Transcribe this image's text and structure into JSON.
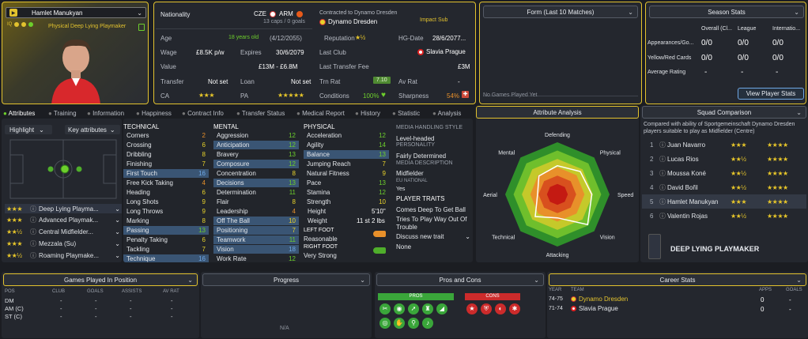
{
  "player": {
    "name": "Hamlet Manukyan",
    "role": "Physical Deep Lying Playmaker",
    "iq_label": "IQ",
    "number_badge": "▶"
  },
  "info": {
    "nationality_label": "Nationality",
    "nation1": "CZE",
    "nation2": "ARM",
    "caps": "13 caps / 0 goals",
    "contracted_label": "Contracted to Dynamo Dresden",
    "club": "Dynamo Dresden",
    "impact": "Impact Sub",
    "age_label": "Age",
    "age": "18 years old",
    "dob": "(4/12/2055)",
    "reputation_label": "Reputation",
    "hg_label": "HG-Date",
    "hg": "28/6/2077...",
    "wage_label": "Wage",
    "wage": "£8.5K p/w",
    "expires_label": "Expires",
    "expires": "30/6/2079",
    "last_club_label": "Last Club",
    "last_club": "Slavia Prague",
    "value_label": "Value",
    "value": "£13M - £6.8M",
    "last_fee_label": "Last Transfer Fee",
    "last_fee": "£3M",
    "transfer_label": "Transfer",
    "transfer": "Not set",
    "loan_label": "Loan",
    "loan": "Not set",
    "trn_label": "Trn Rat",
    "trn": "7.10",
    "av_label": "Av Rat",
    "av": "-",
    "ca_label": "CA",
    "pa_label": "PA",
    "cond_label": "Conditions",
    "cond": "100%",
    "sharp_label": "Sharpness",
    "sharp": "54%"
  },
  "form": {
    "title": "Form (Last 10 Matches)",
    "empty": "No Games Played Yet"
  },
  "season": {
    "title": "Season Stats",
    "cols": [
      "Overall (Cl...",
      "League",
      "Internatio..."
    ],
    "rows": [
      {
        "label": "Appearances/Go...",
        "v": [
          "0/0",
          "0/0",
          "0/0"
        ]
      },
      {
        "label": "Yellow/Red Cards",
        "v": [
          "0/0",
          "0/0",
          "0/0"
        ]
      },
      {
        "label": "Average Rating",
        "v": [
          "-",
          "-",
          "-"
        ]
      }
    ],
    "button": "View Player Stats"
  },
  "tabs": [
    "Attributes",
    "Training",
    "Information",
    "Happiness",
    "Contract Info",
    "Transfer Status",
    "Medical Report",
    "History",
    "Statistic",
    "Analysis"
  ],
  "left": {
    "highlight": "Highlight",
    "key_attrs": "Key attributes",
    "roles": [
      {
        "stars": "★★★",
        "name": "Deep Lying Playma..."
      },
      {
        "stars": "★★★",
        "name": "Advanced Playmak..."
      },
      {
        "stars": "★★½",
        "name": "Central Midfielder..."
      },
      {
        "stars": "★★★",
        "name": "Mezzala (Su)"
      },
      {
        "stars": "★★½",
        "name": "Roaming Playmake..."
      }
    ]
  },
  "technical": {
    "title": "TECHNICAL",
    "attrs": [
      {
        "n": "Corners",
        "v": "2"
      },
      {
        "n": "Crossing",
        "v": "6"
      },
      {
        "n": "Dribbling",
        "v": "8"
      },
      {
        "n": "Finishing",
        "v": "7"
      },
      {
        "n": "First Touch",
        "v": "16"
      },
      {
        "n": "Free Kick Taking",
        "v": "4"
      },
      {
        "n": "Heading",
        "v": "6"
      },
      {
        "n": "Long Shots",
        "v": "9"
      },
      {
        "n": "Long Throws",
        "v": "9"
      },
      {
        "n": "Marking",
        "v": "8"
      },
      {
        "n": "Passing",
        "v": "13"
      },
      {
        "n": "Penalty Taking",
        "v": "6"
      },
      {
        "n": "Tackling",
        "v": "7"
      },
      {
        "n": "Technique",
        "v": "16"
      }
    ]
  },
  "mental": {
    "title": "MENTAL",
    "attrs": [
      {
        "n": "Aggression",
        "v": "12"
      },
      {
        "n": "Anticipation",
        "v": "12"
      },
      {
        "n": "Bravery",
        "v": "13"
      },
      {
        "n": "Composure",
        "v": "12"
      },
      {
        "n": "Concentration",
        "v": "8"
      },
      {
        "n": "Decisions",
        "v": "13"
      },
      {
        "n": "Determination",
        "v": "11"
      },
      {
        "n": "Flair",
        "v": "8"
      },
      {
        "n": "Leadership",
        "v": "4"
      },
      {
        "n": "Off The Ball",
        "v": "10"
      },
      {
        "n": "Positioning",
        "v": "7"
      },
      {
        "n": "Teamwork",
        "v": "11"
      },
      {
        "n": "Vision",
        "v": "18"
      },
      {
        "n": "Work Rate",
        "v": "12"
      }
    ]
  },
  "physical": {
    "title": "PHYSICAL",
    "attrs": [
      {
        "n": "Acceleration",
        "v": "12"
      },
      {
        "n": "Agility",
        "v": "14"
      },
      {
        "n": "Balance",
        "v": "13"
      },
      {
        "n": "Jumping Reach",
        "v": "7"
      },
      {
        "n": "Natural Fitness",
        "v": "9"
      },
      {
        "n": "Pace",
        "v": "13"
      },
      {
        "n": "Stamina",
        "v": "12"
      },
      {
        "n": "Strength",
        "v": "10"
      }
    ],
    "height_label": "Height",
    "height": "5'10\"",
    "weight_label": "Weight",
    "weight": "11 st 2 lbs",
    "left_foot_label": "LEFT FOOT",
    "left_foot": "Reasonable",
    "right_foot_label": "RIGHT FOOT",
    "right_foot": "Very Strong"
  },
  "media": {
    "style_title": "MEDIA HANDLING STYLE",
    "style": "Level-headed",
    "pers_title": "PERSONALITY",
    "pers": "Fairly Determined",
    "desc_title": "MEDIA DESCRIPTION",
    "desc": "Midfielder",
    "eu_title": "EU NATIONAL",
    "eu": "Yes",
    "traits_title": "PLAYER TRAITS",
    "traits": [
      "Comes Deep To Get Ball",
      "Tries To Play Way Out Of Trouble"
    ],
    "discuss": "Discuss new trait",
    "none": "None"
  },
  "analysis": {
    "title": "Attribute Analysis",
    "axes": [
      "Defending",
      "Physical",
      "Speed",
      "Vision",
      "Attacking",
      "Technical",
      "Aerial",
      "Mental"
    ]
  },
  "squad": {
    "title": "Squad Comparison",
    "desc": "Compared with ability of Sportgemeinschaft Dynamo Dresden players suitable to play as Midfielder (Centre)",
    "rows": [
      {
        "rank": "1",
        "name": "Juan Navarro",
        "s1": "★★★",
        "s2": "★★★★"
      },
      {
        "rank": "2",
        "name": "Lucas Rios",
        "s1": "★★½",
        "s2": "★★★★"
      },
      {
        "rank": "3",
        "name": "Moussa Koné",
        "s1": "★★½",
        "s2": "★★★★"
      },
      {
        "rank": "4",
        "name": "David Bořil",
        "s1": "★★½",
        "s2": "★★★★"
      },
      {
        "rank": "5",
        "name": "Hamlet Manukyan",
        "s1": "★★★",
        "s2": "★★★★"
      },
      {
        "rank": "6",
        "name": "Valentin Rojas",
        "s1": "★★½",
        "s2": "★★★★"
      }
    ],
    "role": "DEEP LYING PLAYMAKER"
  },
  "games": {
    "title": "Games Played In Position",
    "cols": [
      "POS",
      "CLUB",
      "GOALS",
      "ASSISTS",
      "AV RAT"
    ],
    "rows": [
      {
        "pos": "DM",
        "v": [
          "-",
          "-",
          "-",
          "-"
        ]
      },
      {
        "pos": "AM (C)",
        "v": [
          "-",
          "-",
          "-",
          "-"
        ]
      },
      {
        "pos": "ST (C)",
        "v": [
          "-",
          "-",
          "-",
          "-"
        ]
      }
    ]
  },
  "progress": {
    "title": "Progress",
    "na": "N/A"
  },
  "proscons": {
    "title": "Pros and Cons",
    "pros": "PROS",
    "cons": "CONS"
  },
  "career": {
    "title": "Career Stats",
    "cols": [
      "YEAR",
      "TEAM",
      "APPS",
      "GOALS"
    ],
    "rows": [
      {
        "year": "74-75",
        "team": "Dynamo Dresden",
        "apps": "0",
        "goals": "-"
      },
      {
        "year": "71-74",
        "team": "Slavia Prague",
        "apps": "0",
        "goals": "-"
      }
    ]
  },
  "colors": {
    "accent": "#e2c22e",
    "green": "#6dcf2c",
    "red": "#cc2b2b"
  }
}
